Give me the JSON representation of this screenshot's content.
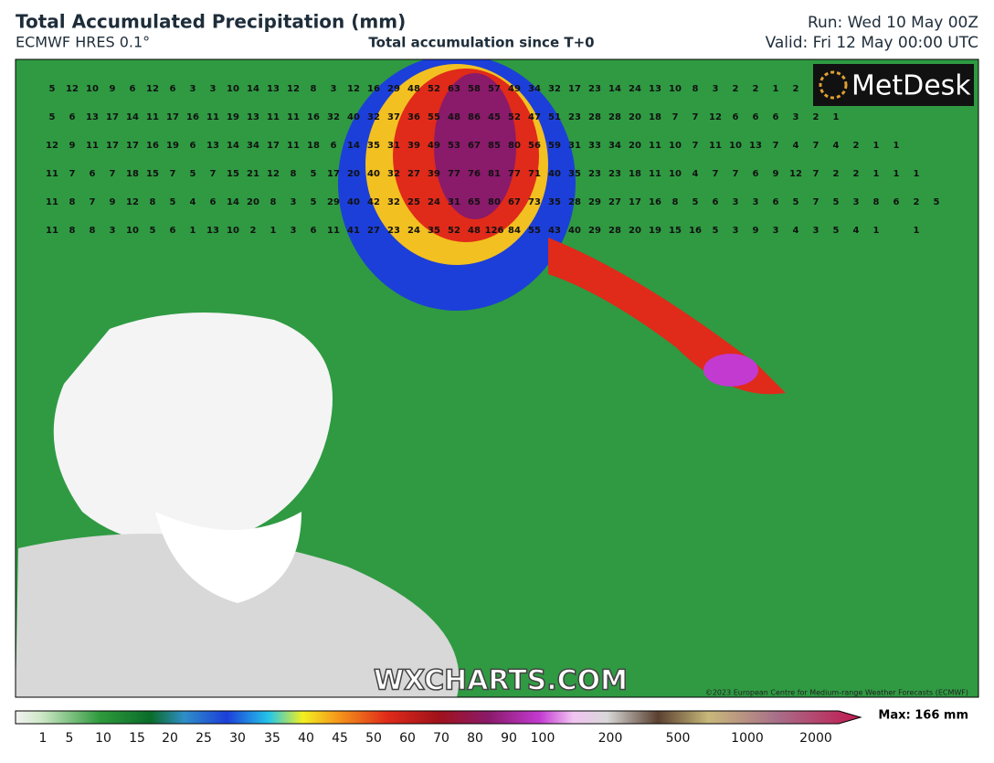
{
  "header": {
    "title": "Total Accumulated Precipitation (mm)",
    "model": "ECMWF HRES 0.1°",
    "subtitle": "Total accumulation since T+0",
    "run": "Run: Wed 10 May 00Z",
    "valid": "Valid: Fri 12 May 00:00 UTC"
  },
  "map": {
    "logo": "MetDesk",
    "watermark": "WXCHARTS.COM",
    "copyright": "©2023 European Centre for Medium-range Weather Forecasts (ECMWF)",
    "grid_values": [
      [
        5,
        12,
        10,
        9,
        6,
        12,
        6,
        3,
        3,
        10,
        14,
        13,
        12,
        8,
        3,
        12,
        16,
        29,
        48,
        52,
        63,
        58,
        57,
        49,
        34,
        32,
        17,
        23,
        14,
        24,
        13,
        10,
        8,
        3,
        2,
        2,
        1,
        2
      ],
      [
        5,
        6,
        13,
        17,
        14,
        11,
        17,
        16,
        11,
        19,
        13,
        11,
        11,
        16,
        32,
        40,
        32,
        37,
        36,
        55,
        48,
        86,
        45,
        52,
        47,
        51,
        23,
        28,
        28,
        20,
        18,
        7,
        7,
        12,
        6,
        6,
        6,
        3,
        2,
        1
      ],
      [
        12,
        9,
        11,
        17,
        17,
        16,
        19,
        6,
        13,
        14,
        34,
        17,
        11,
        18,
        6,
        14,
        35,
        31,
        39,
        49,
        53,
        67,
        85,
        80,
        56,
        59,
        31,
        33,
        34,
        20,
        11,
        10,
        7,
        11,
        10,
        13,
        7,
        4,
        7,
        4,
        2,
        1,
        1
      ],
      [
        11,
        7,
        6,
        7,
        18,
        15,
        7,
        5,
        7,
        15,
        21,
        12,
        8,
        5,
        17,
        20,
        40,
        32,
        27,
        39,
        77,
        76,
        81,
        77,
        71,
        40,
        35,
        23,
        23,
        18,
        11,
        10,
        4,
        7,
        7,
        6,
        9,
        12,
        7,
        2,
        2,
        1,
        1,
        1
      ],
      [
        11,
        8,
        7,
        9,
        12,
        8,
        5,
        4,
        6,
        14,
        20,
        8,
        3,
        5,
        29,
        40,
        42,
        32,
        25,
        24,
        31,
        65,
        80,
        67,
        73,
        35,
        28,
        29,
        27,
        17,
        16,
        8,
        5,
        6,
        3,
        3,
        6,
        5,
        7,
        5,
        3,
        8,
        6,
        2,
        5
      ],
      [
        11,
        8,
        8,
        3,
        10,
        5,
        6,
        1,
        13,
        10,
        2,
        1,
        3,
        6,
        11,
        41,
        27,
        23,
        24,
        35,
        52,
        48,
        126,
        84,
        55,
        43,
        40,
        29,
        28,
        20,
        19,
        15,
        16,
        5,
        3,
        9,
        3,
        4,
        3,
        5,
        4,
        1,
        null,
        1
      ]
    ]
  },
  "legend": {
    "max_label": "Max: 166 mm",
    "ticks": [
      1,
      5,
      10,
      15,
      20,
      25,
      30,
      35,
      40,
      45,
      50,
      60,
      70,
      80,
      90,
      100,
      200,
      500,
      1000,
      2000
    ]
  }
}
